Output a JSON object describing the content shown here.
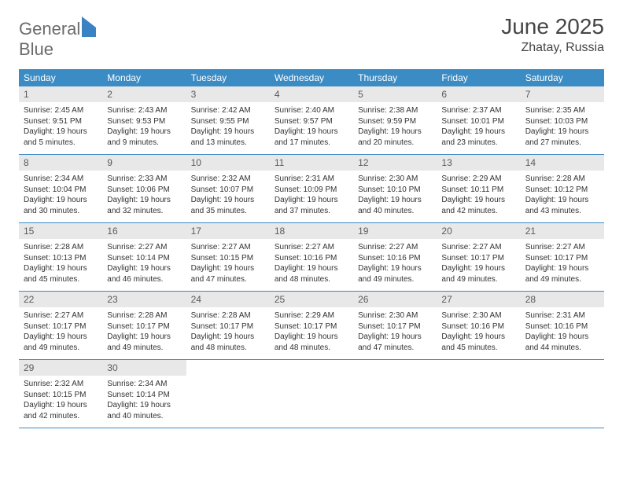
{
  "logo": {
    "line1": "General",
    "line2": "Blue"
  },
  "title": "June 2025",
  "location": "Zhatay, Russia",
  "colors": {
    "header_bg": "#3b8bc4",
    "header_fg": "#ffffff",
    "daynum_bg": "#e8e8e8",
    "daynum_fg": "#5a5a5a",
    "rule": "#3b8bc4",
    "text": "#333333",
    "logo_gray": "#6b6b6b",
    "logo_blue": "#3b82c4"
  },
  "dow": [
    "Sunday",
    "Monday",
    "Tuesday",
    "Wednesday",
    "Thursday",
    "Friday",
    "Saturday"
  ],
  "weeks": [
    [
      {
        "n": "1",
        "sr": "Sunrise: 2:45 AM",
        "ss": "Sunset: 9:51 PM",
        "d1": "Daylight: 19 hours",
        "d2": "and 5 minutes."
      },
      {
        "n": "2",
        "sr": "Sunrise: 2:43 AM",
        "ss": "Sunset: 9:53 PM",
        "d1": "Daylight: 19 hours",
        "d2": "and 9 minutes."
      },
      {
        "n": "3",
        "sr": "Sunrise: 2:42 AM",
        "ss": "Sunset: 9:55 PM",
        "d1": "Daylight: 19 hours",
        "d2": "and 13 minutes."
      },
      {
        "n": "4",
        "sr": "Sunrise: 2:40 AM",
        "ss": "Sunset: 9:57 PM",
        "d1": "Daylight: 19 hours",
        "d2": "and 17 minutes."
      },
      {
        "n": "5",
        "sr": "Sunrise: 2:38 AM",
        "ss": "Sunset: 9:59 PM",
        "d1": "Daylight: 19 hours",
        "d2": "and 20 minutes."
      },
      {
        "n": "6",
        "sr": "Sunrise: 2:37 AM",
        "ss": "Sunset: 10:01 PM",
        "d1": "Daylight: 19 hours",
        "d2": "and 23 minutes."
      },
      {
        "n": "7",
        "sr": "Sunrise: 2:35 AM",
        "ss": "Sunset: 10:03 PM",
        "d1": "Daylight: 19 hours",
        "d2": "and 27 minutes."
      }
    ],
    [
      {
        "n": "8",
        "sr": "Sunrise: 2:34 AM",
        "ss": "Sunset: 10:04 PM",
        "d1": "Daylight: 19 hours",
        "d2": "and 30 minutes."
      },
      {
        "n": "9",
        "sr": "Sunrise: 2:33 AM",
        "ss": "Sunset: 10:06 PM",
        "d1": "Daylight: 19 hours",
        "d2": "and 32 minutes."
      },
      {
        "n": "10",
        "sr": "Sunrise: 2:32 AM",
        "ss": "Sunset: 10:07 PM",
        "d1": "Daylight: 19 hours",
        "d2": "and 35 minutes."
      },
      {
        "n": "11",
        "sr": "Sunrise: 2:31 AM",
        "ss": "Sunset: 10:09 PM",
        "d1": "Daylight: 19 hours",
        "d2": "and 37 minutes."
      },
      {
        "n": "12",
        "sr": "Sunrise: 2:30 AM",
        "ss": "Sunset: 10:10 PM",
        "d1": "Daylight: 19 hours",
        "d2": "and 40 minutes."
      },
      {
        "n": "13",
        "sr": "Sunrise: 2:29 AM",
        "ss": "Sunset: 10:11 PM",
        "d1": "Daylight: 19 hours",
        "d2": "and 42 minutes."
      },
      {
        "n": "14",
        "sr": "Sunrise: 2:28 AM",
        "ss": "Sunset: 10:12 PM",
        "d1": "Daylight: 19 hours",
        "d2": "and 43 minutes."
      }
    ],
    [
      {
        "n": "15",
        "sr": "Sunrise: 2:28 AM",
        "ss": "Sunset: 10:13 PM",
        "d1": "Daylight: 19 hours",
        "d2": "and 45 minutes."
      },
      {
        "n": "16",
        "sr": "Sunrise: 2:27 AM",
        "ss": "Sunset: 10:14 PM",
        "d1": "Daylight: 19 hours",
        "d2": "and 46 minutes."
      },
      {
        "n": "17",
        "sr": "Sunrise: 2:27 AM",
        "ss": "Sunset: 10:15 PM",
        "d1": "Daylight: 19 hours",
        "d2": "and 47 minutes."
      },
      {
        "n": "18",
        "sr": "Sunrise: 2:27 AM",
        "ss": "Sunset: 10:16 PM",
        "d1": "Daylight: 19 hours",
        "d2": "and 48 minutes."
      },
      {
        "n": "19",
        "sr": "Sunrise: 2:27 AM",
        "ss": "Sunset: 10:16 PM",
        "d1": "Daylight: 19 hours",
        "d2": "and 49 minutes."
      },
      {
        "n": "20",
        "sr": "Sunrise: 2:27 AM",
        "ss": "Sunset: 10:17 PM",
        "d1": "Daylight: 19 hours",
        "d2": "and 49 minutes."
      },
      {
        "n": "21",
        "sr": "Sunrise: 2:27 AM",
        "ss": "Sunset: 10:17 PM",
        "d1": "Daylight: 19 hours",
        "d2": "and 49 minutes."
      }
    ],
    [
      {
        "n": "22",
        "sr": "Sunrise: 2:27 AM",
        "ss": "Sunset: 10:17 PM",
        "d1": "Daylight: 19 hours",
        "d2": "and 49 minutes."
      },
      {
        "n": "23",
        "sr": "Sunrise: 2:28 AM",
        "ss": "Sunset: 10:17 PM",
        "d1": "Daylight: 19 hours",
        "d2": "and 49 minutes."
      },
      {
        "n": "24",
        "sr": "Sunrise: 2:28 AM",
        "ss": "Sunset: 10:17 PM",
        "d1": "Daylight: 19 hours",
        "d2": "and 48 minutes."
      },
      {
        "n": "25",
        "sr": "Sunrise: 2:29 AM",
        "ss": "Sunset: 10:17 PM",
        "d1": "Daylight: 19 hours",
        "d2": "and 48 minutes."
      },
      {
        "n": "26",
        "sr": "Sunrise: 2:30 AM",
        "ss": "Sunset: 10:17 PM",
        "d1": "Daylight: 19 hours",
        "d2": "and 47 minutes."
      },
      {
        "n": "27",
        "sr": "Sunrise: 2:30 AM",
        "ss": "Sunset: 10:16 PM",
        "d1": "Daylight: 19 hours",
        "d2": "and 45 minutes."
      },
      {
        "n": "28",
        "sr": "Sunrise: 2:31 AM",
        "ss": "Sunset: 10:16 PM",
        "d1": "Daylight: 19 hours",
        "d2": "and 44 minutes."
      }
    ],
    [
      {
        "n": "29",
        "sr": "Sunrise: 2:32 AM",
        "ss": "Sunset: 10:15 PM",
        "d1": "Daylight: 19 hours",
        "d2": "and 42 minutes."
      },
      {
        "n": "30",
        "sr": "Sunrise: 2:34 AM",
        "ss": "Sunset: 10:14 PM",
        "d1": "Daylight: 19 hours",
        "d2": "and 40 minutes."
      },
      {
        "empty": true
      },
      {
        "empty": true
      },
      {
        "empty": true
      },
      {
        "empty": true
      },
      {
        "empty": true
      }
    ]
  ]
}
